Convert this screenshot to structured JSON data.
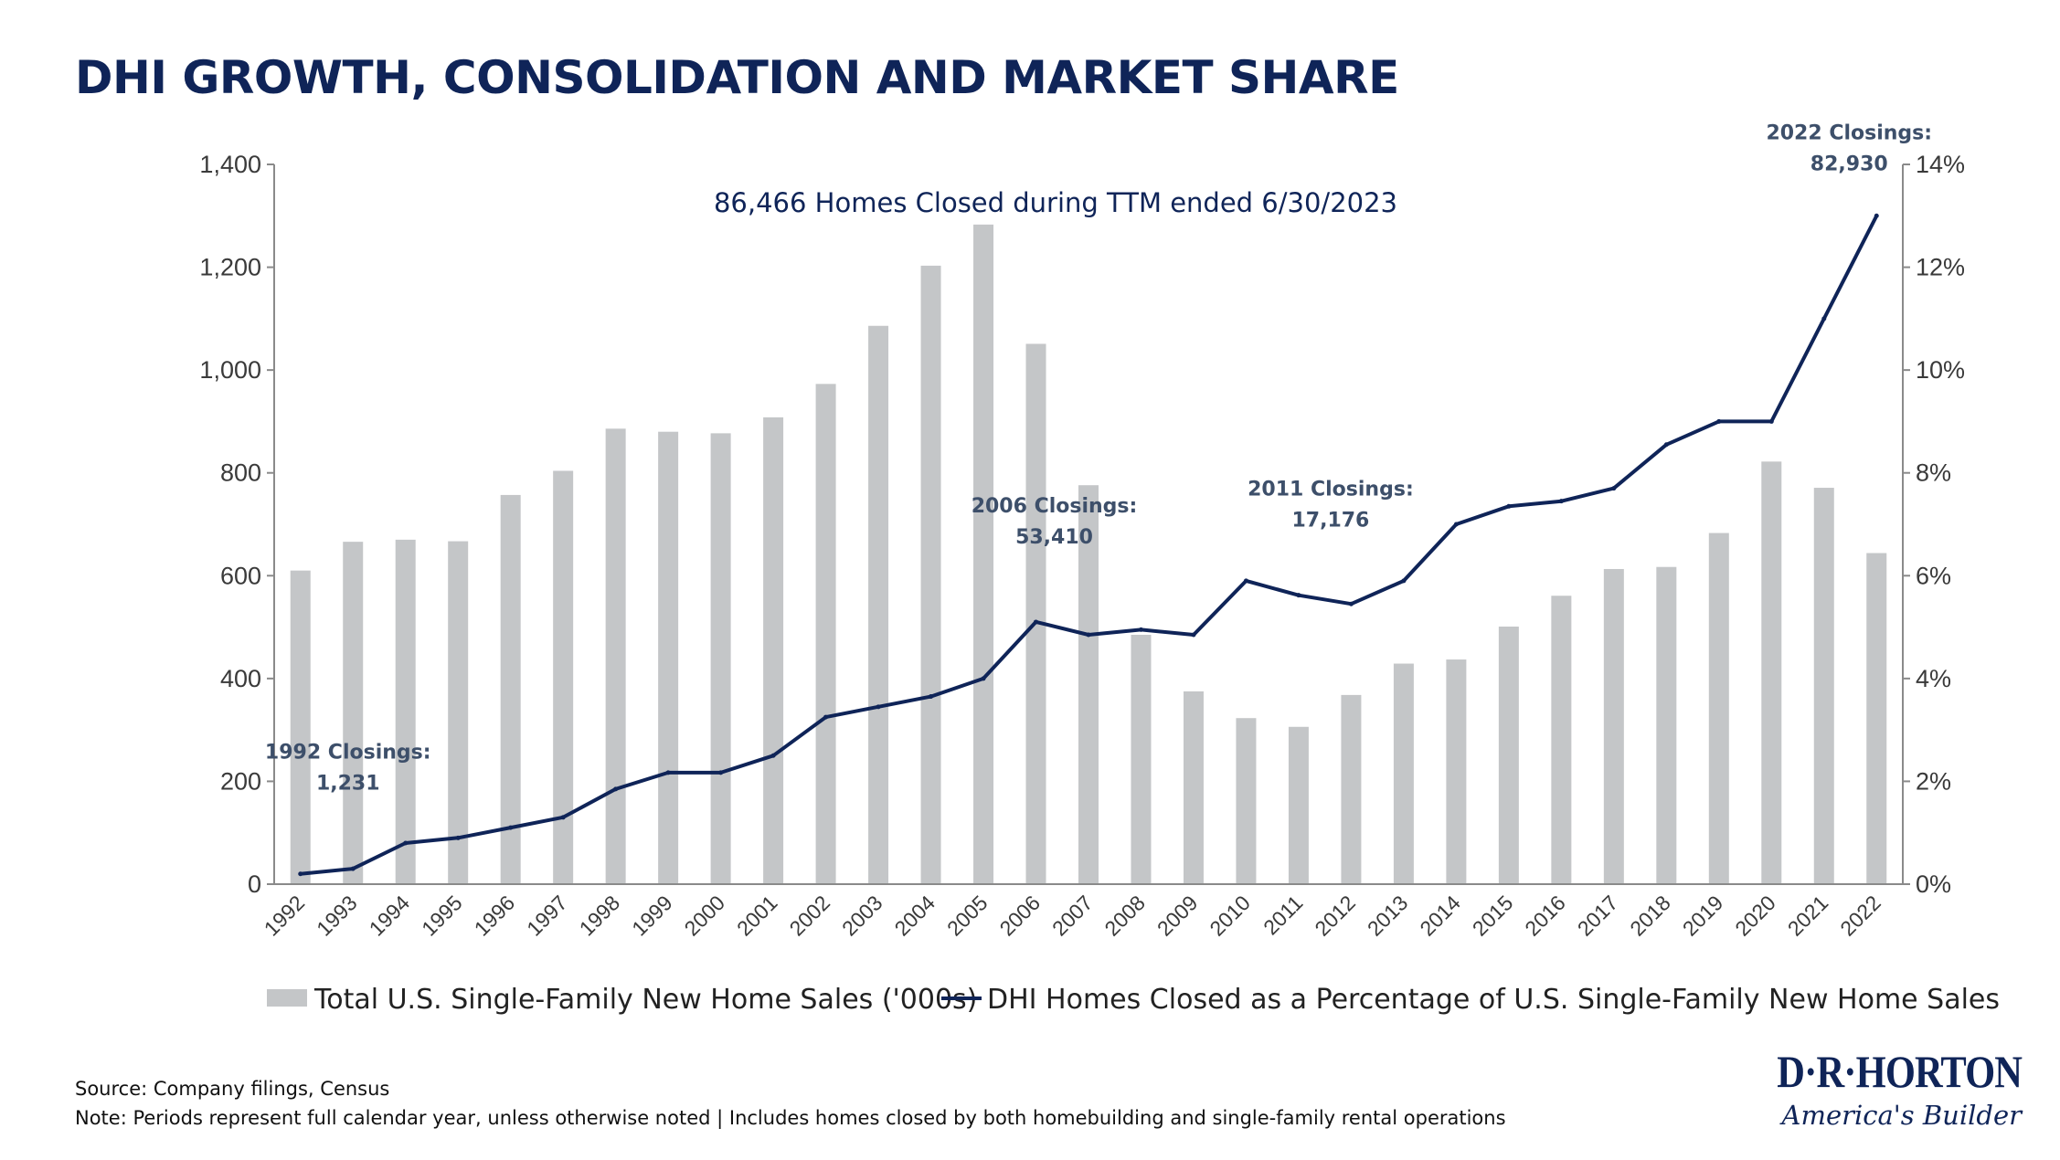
{
  "page": {
    "title": "DHI GROWTH, CONSOLIDATION AND MARKET SHARE",
    "headline": "86,466 Homes Closed during TTM ended 6/30/2023"
  },
  "colors": {
    "bar": "#c4c6c8",
    "line": "#0f2458",
    "title": "#0f2458",
    "annotation": "#3d4f6a"
  },
  "chart_data": {
    "type": "bar",
    "title": "DHI GROWTH, CONSOLIDATION AND MARKET SHARE",
    "categories": [
      "1992",
      "1993",
      "1994",
      "1995",
      "1996",
      "1997",
      "1998",
      "1999",
      "2000",
      "2001",
      "2002",
      "2003",
      "2004",
      "2005",
      "2006",
      "2007",
      "2008",
      "2009",
      "2010",
      "2011",
      "2012",
      "2013",
      "2014",
      "2015",
      "2016",
      "2017",
      "2018",
      "2019",
      "2020",
      "2021",
      "2022"
    ],
    "series": [
      {
        "name": "Total U.S. Single-Family New Home Sales ('000s)",
        "type": "bar",
        "axis": "left",
        "values": [
          610,
          666,
          670,
          667,
          757,
          804,
          886,
          880,
          877,
          908,
          973,
          1086,
          1203,
          1283,
          1051,
          776,
          485,
          375,
          323,
          306,
          368,
          429,
          437,
          501,
          561,
          613,
          617,
          683,
          822,
          771,
          644
        ]
      },
      {
        "name": "DHI Homes Closed as a Percentage of U.S. Single-Family New Home Sales",
        "type": "line",
        "axis": "right",
        "values": [
          0.2,
          0.3,
          0.8,
          0.9,
          1.1,
          1.3,
          1.85,
          2.17,
          2.17,
          2.5,
          3.25,
          3.45,
          3.65,
          4.0,
          5.1,
          4.85,
          4.95,
          4.85,
          5.9,
          5.62,
          5.45,
          5.9,
          7.0,
          7.35,
          7.45,
          7.7,
          8.55,
          9.0,
          9.0,
          11.0,
          13.0
        ]
      }
    ],
    "ylabel": "",
    "xlabel": "",
    "ylim": [
      0,
      1400
    ],
    "y_ticks": [
      "0",
      "200",
      "400",
      "600",
      "800",
      "1,000",
      "1,200",
      "1,400"
    ],
    "y2lim": [
      0,
      14
    ],
    "y2_ticks": [
      "0%",
      "2%",
      "4%",
      "6%",
      "8%",
      "10%",
      "12%",
      "14%"
    ],
    "annotations": [
      {
        "year": "1992",
        "lines": [
          "1992 Closings:",
          "1,231"
        ]
      },
      {
        "year": "2006",
        "lines": [
          "2006 Closings:",
          "53,410"
        ]
      },
      {
        "year": "2011",
        "lines": [
          "2011 Closings:",
          "17,176"
        ]
      },
      {
        "year": "2022",
        "lines": [
          "2022 Closings:",
          "82,930"
        ]
      }
    ],
    "legend": {
      "placement": "bottom",
      "bar_label": "Total U.S. Single-Family New Home Sales ('000s)",
      "line_label": "DHI Homes Closed as a Percentage of U.S. Single-Family New Home Sales"
    }
  },
  "footer": {
    "source": "Source: Company filings, Census",
    "note": "Note: Periods represent full calendar year, unless otherwise noted  | Includes homes closed by both homebuilding and single-family rental operations"
  },
  "logo": {
    "brand": "D·R·HORTON",
    "tagline": "America's Builder"
  }
}
